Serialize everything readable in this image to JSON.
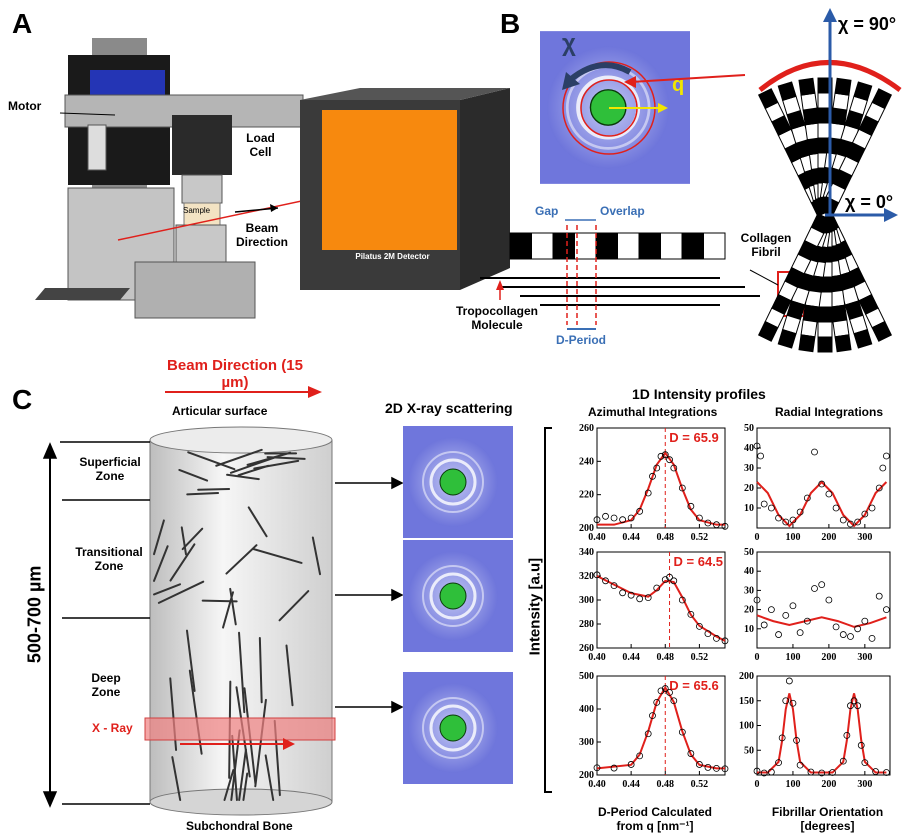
{
  "panel_a": {
    "label": "A",
    "motor": "Motor",
    "load_cell": "Load Cell",
    "sample": "Sample",
    "beam_direction": "Beam Direction",
    "detector": "Pilatus 2M Detector"
  },
  "panel_b": {
    "label": "B",
    "chi": "χ",
    "q": "q",
    "chi_90": "χ = 90°",
    "chi_0": "χ = 0°",
    "gap": "Gap",
    "overlap": "Overlap",
    "collagen_fibril": "Collagen Fibril",
    "tropocollagen": "Tropocollagen Molecule",
    "d_period": "D-Period"
  },
  "panel_c": {
    "label": "C",
    "beam_direction": "Beam Direction (15 µm)",
    "articular_surface": "Articular surface",
    "superficial_zone": "Superficial Zone",
    "transitional_zone": "Transitional Zone",
    "deep_zone": "Deep Zone",
    "x_ray": "X - Ray",
    "subchondral_bone": "Subchondral Bone",
    "depth": "500-700 µm",
    "scattering_title": "2D X-ray scattering",
    "profiles_title": "1D Intensity profiles",
    "azimuthal_title": "Azimuthal Integrations",
    "radial_title": "Radial Integrations",
    "y_label": "Intensity [a.u]",
    "azimuthal_x_label": "D-Period Calculated from q [nm⁻¹]",
    "radial_x_label": "Fibrillar Orientation [degrees]"
  },
  "chart_data": [
    {
      "type": "scatter",
      "xlim": [
        0.4,
        0.55
      ],
      "xticks": [
        {
          "value": 0.4,
          "label": "0.40"
        },
        0.44,
        0.48,
        0.52
      ],
      "ylim": [
        200,
        260
      ],
      "yticks": [
        200,
        220,
        240,
        260
      ],
      "points": {
        "color": "#000000",
        "x": [
          0.4,
          0.41,
          0.42,
          0.43,
          0.44,
          0.45,
          0.46,
          0.465,
          0.47,
          0.475,
          0.48,
          0.485,
          0.49,
          0.5,
          0.51,
          0.52,
          0.53,
          0.54,
          0.55
        ],
        "y": [
          205,
          207,
          206,
          205,
          206,
          210,
          221,
          231,
          236,
          243,
          244,
          241,
          236,
          224,
          213,
          206,
          203,
          202,
          201
        ]
      },
      "fit": {
        "color": "#e0201b",
        "x": [
          0.4,
          0.42,
          0.44,
          0.45,
          0.46,
          0.47,
          0.48,
          0.49,
          0.5,
          0.51,
          0.52,
          0.54,
          0.55
        ],
        "y": [
          202,
          202,
          204.7,
          211,
          223.5,
          238,
          245,
          238,
          223.5,
          211,
          204.7,
          202,
          202
        ]
      },
      "peak_x": 0.48,
      "annotation": "D = 65.9"
    },
    {
      "type": "scatter",
      "xlim": [
        0,
        370
      ],
      "xticks": [
        0,
        100,
        200,
        300
      ],
      "ylim": [
        0,
        50
      ],
      "yticks": [
        10,
        20,
        30,
        40,
        50
      ],
      "points": {
        "color": "#000000",
        "x": [
          0,
          10,
          20,
          40,
          60,
          80,
          100,
          120,
          140,
          160,
          180,
          200,
          220,
          240,
          260,
          280,
          300,
          320,
          340,
          350,
          360
        ],
        "y": [
          41,
          36,
          12,
          10,
          5,
          3,
          4,
          8,
          15,
          38,
          22,
          17,
          10,
          4,
          2,
          3,
          7,
          10,
          20,
          30,
          36
        ]
      },
      "fit": {
        "color": "#e0201b",
        "x": [
          0,
          30,
          60,
          90,
          120,
          150,
          180,
          210,
          240,
          270,
          300,
          330,
          360
        ],
        "y": [
          23,
          17.5,
          6.5,
          1,
          6.5,
          17.5,
          23,
          17.5,
          6.5,
          1,
          6.5,
          17.5,
          23
        ]
      }
    },
    {
      "type": "scatter",
      "xlim": [
        0.4,
        0.55
      ],
      "xticks": [
        {
          "value": 0.4,
          "label": "0.40"
        },
        0.44,
        0.48,
        0.52
      ],
      "ylim": [
        260,
        340
      ],
      "yticks": [
        260,
        280,
        300,
        320,
        340
      ],
      "points": {
        "color": "#000000",
        "x": [
          0.4,
          0.41,
          0.42,
          0.43,
          0.44,
          0.45,
          0.46,
          0.47,
          0.48,
          0.485,
          0.49,
          0.5,
          0.51,
          0.52,
          0.53,
          0.54,
          0.55
        ],
        "y": [
          321,
          316,
          312,
          306,
          304,
          301,
          302,
          310,
          317,
          319,
          316,
          300,
          288,
          278,
          272,
          268,
          266
        ]
      },
      "fit": {
        "color": "#e0201b",
        "x": [
          0.4,
          0.42,
          0.44,
          0.46,
          0.47,
          0.48,
          0.49,
          0.5,
          0.51,
          0.52,
          0.54,
          0.55
        ],
        "y": [
          320,
          312.8,
          305.7,
          302.8,
          308.2,
          315.9,
          315,
          302.2,
          287.7,
          278.5,
          269.6,
          266
        ]
      },
      "peak_x": 0.485,
      "annotation": "D = 64.5"
    },
    {
      "type": "scatter",
      "xlim": [
        0,
        370
      ],
      "xticks": [
        0,
        100,
        200,
        300
      ],
      "ylim": [
        0,
        50
      ],
      "yticks": [
        10,
        20,
        30,
        40,
        50
      ],
      "points": {
        "color": "#000000",
        "x": [
          0,
          20,
          40,
          60,
          80,
          100,
          120,
          140,
          160,
          180,
          200,
          220,
          240,
          260,
          280,
          300,
          320,
          340,
          360
        ],
        "y": [
          25,
          12,
          20,
          7,
          17,
          22,
          8,
          14,
          31,
          33,
          25,
          11,
          7,
          6,
          10,
          14,
          5,
          27,
          20
        ]
      },
      "fit": {
        "color": "#e0201b",
        "x": [
          0,
          45,
          90,
          135,
          180,
          225,
          270,
          315,
          360
        ],
        "y": [
          17,
          14,
          12,
          14,
          16,
          14,
          11,
          13,
          16
        ]
      }
    },
    {
      "type": "scatter",
      "xlim": [
        0.4,
        0.55
      ],
      "xticks": [
        {
          "value": 0.4,
          "label": "0.40"
        },
        0.44,
        0.48,
        0.52
      ],
      "ylim": [
        200,
        500
      ],
      "yticks": [
        200,
        300,
        400,
        500
      ],
      "points": {
        "color": "#000000",
        "x": [
          0.4,
          0.42,
          0.44,
          0.45,
          0.46,
          0.465,
          0.47,
          0.475,
          0.48,
          0.485,
          0.49,
          0.5,
          0.51,
          0.52,
          0.53,
          0.54,
          0.55
        ],
        "y": [
          222,
          221,
          232,
          258,
          325,
          380,
          420,
          455,
          462,
          450,
          425,
          330,
          265,
          232,
          223,
          220,
          219
        ]
      },
      "fit": {
        "color": "#e0201b",
        "x": [
          0.4,
          0.44,
          0.45,
          0.46,
          0.47,
          0.48,
          0.49,
          0.5,
          0.51,
          0.52,
          0.54,
          0.55
        ],
        "y": [
          220,
          230.8,
          262,
          332,
          421,
          465,
          421,
          332,
          262,
          230.8,
          220,
          220
        ]
      },
      "peak_x": 0.48,
      "annotation": "D = 65.6"
    },
    {
      "type": "scatter",
      "xlim": [
        0,
        370
      ],
      "xticks": [
        0,
        100,
        200,
        300
      ],
      "ylim": [
        0,
        200
      ],
      "yticks": [
        50,
        100,
        150,
        200
      ],
      "points": {
        "color": "#000000",
        "x": [
          0,
          20,
          40,
          60,
          70,
          80,
          90,
          100,
          110,
          120,
          150,
          180,
          210,
          240,
          250,
          260,
          270,
          280,
          290,
          300,
          330,
          360
        ],
        "y": [
          8,
          4,
          6,
          25,
          75,
          150,
          190,
          145,
          70,
          20,
          6,
          4,
          5,
          28,
          80,
          140,
          150,
          140,
          60,
          25,
          7,
          5
        ]
      },
      "fit": {
        "color": "#e0201b",
        "x": [
          0,
          30,
          60,
          70,
          80,
          90,
          100,
          110,
          120,
          150,
          180,
          210,
          240,
          250,
          260,
          270,
          280,
          290,
          300,
          330,
          360
        ],
        "y": [
          5,
          5,
          26.6,
          70,
          133,
          165,
          133,
          70,
          26.6,
          5,
          5,
          5,
          26.6,
          70,
          133,
          165,
          133,
          70,
          26.6,
          5,
          5
        ]
      }
    }
  ]
}
